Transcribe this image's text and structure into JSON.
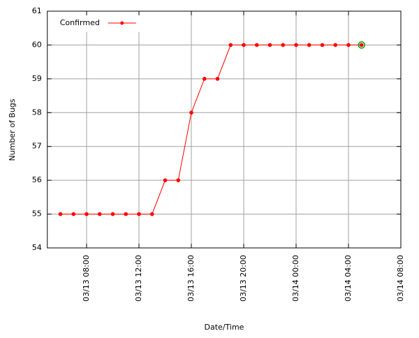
{
  "chart_data": {
    "type": "line",
    "y_label": "Number of Bugs",
    "x_label": "Date/Time",
    "x": [
      "03/13 06:00",
      "03/13 07:00",
      "03/13 08:00",
      "03/13 09:00",
      "03/13 10:00",
      "03/13 11:00",
      "03/13 12:00",
      "03/13 13:00",
      "03/13 14:00",
      "03/13 15:00",
      "03/13 16:00",
      "03/13 17:00",
      "03/13 18:00",
      "03/13 19:00",
      "03/13 20:00",
      "03/13 21:00",
      "03/13 22:00",
      "03/13 23:00",
      "03/14 00:00",
      "03/14 01:00",
      "03/14 02:00",
      "03/14 03:00",
      "03/14 04:00",
      "03/14 05:00"
    ],
    "series": [
      {
        "name": "Confirmed",
        "color": "#ff0000",
        "values": [
          55,
          55,
          55,
          55,
          55,
          55,
          55,
          55,
          56,
          56,
          58,
          59,
          59,
          60,
          60,
          60,
          60,
          60,
          60,
          60,
          60,
          60,
          60,
          60
        ]
      }
    ],
    "xlim": [
      "03/13 05:00",
      "03/14 08:00"
    ],
    "xticks": [
      "03/13 08:00",
      "03/13 12:00",
      "03/13 16:00",
      "03/13 20:00",
      "03/14 00:00",
      "03/14 04:00",
      "03/14 08:00"
    ],
    "ylim": [
      54,
      61
    ],
    "yticks": [
      54,
      55,
      56,
      57,
      58,
      59,
      60,
      61
    ],
    "grid": true,
    "legend": "top-left",
    "highlight_last_color": "#00a000"
  }
}
